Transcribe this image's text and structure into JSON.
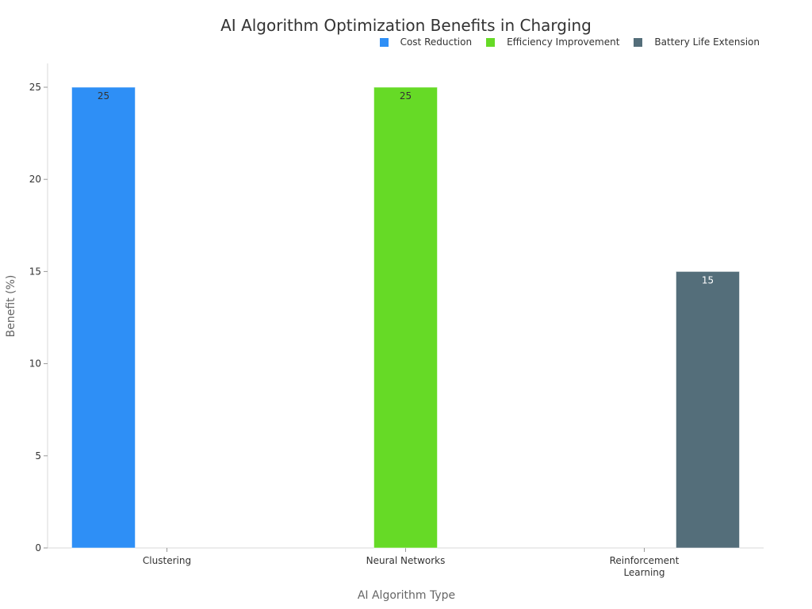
{
  "chart_data": {
    "type": "bar",
    "title": "AI Algorithm Optimization Benefits in Charging",
    "xlabel": "AI Algorithm Type",
    "ylabel": "Benefit (%)",
    "categories": [
      "Clustering",
      "Neural Networks",
      "Reinforcement Learning"
    ],
    "category_lines": [
      [
        "Clustering"
      ],
      [
        "Neural Networks"
      ],
      [
        "Reinforcement",
        "Learning"
      ]
    ],
    "series": [
      {
        "name": "Cost Reduction",
        "color": "#2e8ff6",
        "values": [
          25,
          null,
          null
        ],
        "label_color": "#333333"
      },
      {
        "name": "Efficiency Improvement",
        "color": "#66da26",
        "values": [
          null,
          25,
          null
        ],
        "label_color": "#333333"
      },
      {
        "name": "Battery Life Extension",
        "color": "#546e7a",
        "values": [
          null,
          null,
          15
        ],
        "label_color": "#ffffff"
      }
    ],
    "ylim": [
      0,
      25
    ],
    "yticks": [
      0,
      5,
      10,
      15,
      20,
      25
    ],
    "grid": false,
    "legend_position": "top-right"
  }
}
